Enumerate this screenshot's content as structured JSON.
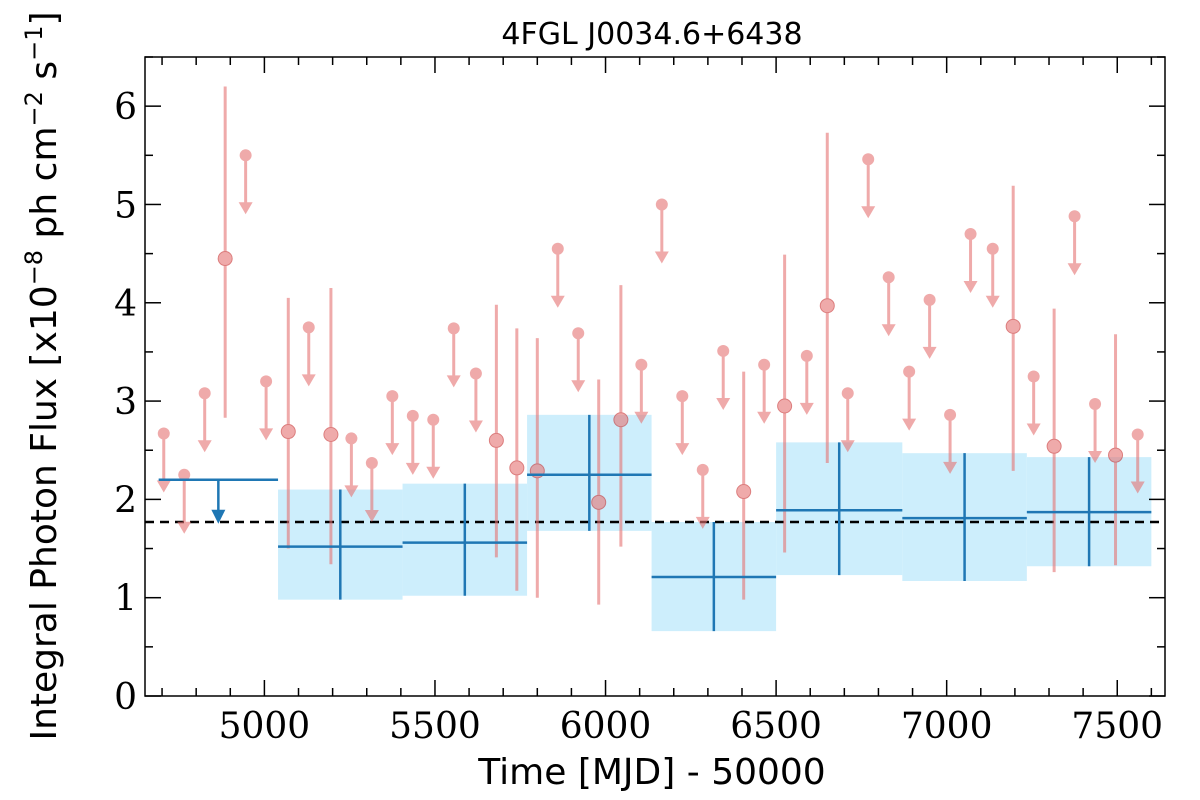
{
  "chart_data": {
    "type": "scatter",
    "title": "4FGL J0034.6+6438",
    "xlabel": "Time [MJD] - 50000",
    "ylabel_main": "Integral Photon Flux [x10",
    "ylabel_exp1": "−8",
    "ylabel_mid": " ph cm",
    "ylabel_exp2": "−2",
    "ylabel_mid2": " s",
    "ylabel_exp3": "−1",
    "ylabel_end": "]",
    "xlim": [
      4650,
      7640
    ],
    "ylim": [
      0,
      6.5
    ],
    "xticks": [
      5000,
      5500,
      6000,
      6500,
      7000,
      7500
    ],
    "yticks": [
      0,
      1,
      2,
      3,
      4,
      5,
      6
    ],
    "average_flux": 1.77,
    "colors": {
      "monthly": "#e57373",
      "yearly": "#1f77b4",
      "band": "#cdeefc",
      "average": "#000000"
    },
    "yearly_bins": [
      {
        "x_start": 4690,
        "x_end": 5040,
        "upper_limit": 2.2
      },
      {
        "x_start": 5040,
        "x_end": 5405,
        "y": 1.52,
        "y_low": 0.98,
        "y_high": 2.1
      },
      {
        "x_start": 5405,
        "x_end": 5770,
        "y": 1.56,
        "y_low": 1.02,
        "y_high": 2.16
      },
      {
        "x_start": 5770,
        "x_end": 6135,
        "y": 2.25,
        "y_low": 1.68,
        "y_high": 2.86
      },
      {
        "x_start": 6135,
        "x_end": 6500,
        "y": 1.21,
        "y_low": 0.66,
        "y_high": 1.77
      },
      {
        "x_start": 6500,
        "x_end": 6870,
        "y": 1.89,
        "y_low": 1.23,
        "y_high": 2.58
      },
      {
        "x_start": 6870,
        "x_end": 7235,
        "y": 1.81,
        "y_low": 1.17,
        "y_high": 2.47
      },
      {
        "x_start": 7235,
        "x_end": 7600,
        "y": 1.87,
        "y_low": 1.32,
        "y_high": 2.43
      }
    ],
    "monthly_points": [
      {
        "x": 4705,
        "y": 2.67,
        "ul": true
      },
      {
        "x": 4765,
        "y": 2.25,
        "ul": true
      },
      {
        "x": 4825,
        "y": 3.08,
        "ul": true
      },
      {
        "x": 4885,
        "y": 4.45,
        "y_low": 2.83,
        "y_high": 6.2
      },
      {
        "x": 4945,
        "y": 5.5,
        "ul": true
      },
      {
        "x": 5005,
        "y": 3.2,
        "ul": true
      },
      {
        "x": 5070,
        "y": 2.69,
        "y_low": 1.5,
        "y_high": 4.05
      },
      {
        "x": 5130,
        "y": 3.75,
        "ul": true
      },
      {
        "x": 5195,
        "y": 2.66,
        "y_low": 1.34,
        "y_high": 4.15
      },
      {
        "x": 5255,
        "y": 2.62,
        "ul": true
      },
      {
        "x": 5315,
        "y": 2.37,
        "ul": true
      },
      {
        "x": 5375,
        "y": 3.05,
        "ul": true
      },
      {
        "x": 5435,
        "y": 2.85,
        "ul": true
      },
      {
        "x": 5495,
        "y": 2.81,
        "ul": true
      },
      {
        "x": 5555,
        "y": 3.74,
        "ul": true
      },
      {
        "x": 5620,
        "y": 3.28,
        "ul": true
      },
      {
        "x": 5680,
        "y": 2.6,
        "y_low": 1.41,
        "y_high": 3.98
      },
      {
        "x": 5740,
        "y": 2.32,
        "y_low": 1.07,
        "y_high": 3.74
      },
      {
        "x": 5800,
        "y": 2.29,
        "y_low": 1.0,
        "y_high": 3.64
      },
      {
        "x": 5860,
        "y": 4.55,
        "ul": true
      },
      {
        "x": 5920,
        "y": 3.69,
        "ul": true
      },
      {
        "x": 5980,
        "y": 1.97,
        "y_low": 0.93,
        "y_high": 3.22
      },
      {
        "x": 6045,
        "y": 2.81,
        "y_low": 1.52,
        "y_high": 4.18
      },
      {
        "x": 6105,
        "y": 3.37,
        "ul": true
      },
      {
        "x": 6165,
        "y": 5.0,
        "ul": true
      },
      {
        "x": 6225,
        "y": 3.05,
        "ul": true
      },
      {
        "x": 6285,
        "y": 2.3,
        "ul": true
      },
      {
        "x": 6345,
        "y": 3.51,
        "ul": true
      },
      {
        "x": 6405,
        "y": 2.08,
        "y_low": 0.98,
        "y_high": 3.3
      },
      {
        "x": 6465,
        "y": 3.37,
        "ul": true
      },
      {
        "x": 6525,
        "y": 2.95,
        "y_low": 1.46,
        "y_high": 4.49
      },
      {
        "x": 6590,
        "y": 3.46,
        "ul": true
      },
      {
        "x": 6650,
        "y": 3.97,
        "y_low": 2.37,
        "y_high": 5.73
      },
      {
        "x": 6710,
        "y": 3.08,
        "ul": true
      },
      {
        "x": 6770,
        "y": 5.46,
        "ul": true
      },
      {
        "x": 6830,
        "y": 4.26,
        "ul": true
      },
      {
        "x": 6890,
        "y": 3.3,
        "ul": true
      },
      {
        "x": 6950,
        "y": 4.03,
        "ul": true
      },
      {
        "x": 7010,
        "y": 2.86,
        "ul": true
      },
      {
        "x": 7070,
        "y": 4.7,
        "ul": true
      },
      {
        "x": 7135,
        "y": 4.55,
        "ul": true
      },
      {
        "x": 7195,
        "y": 3.76,
        "y_low": 2.29,
        "y_high": 5.19
      },
      {
        "x": 7255,
        "y": 3.25,
        "ul": true
      },
      {
        "x": 7315,
        "y": 2.54,
        "y_low": 1.26,
        "y_high": 3.94
      },
      {
        "x": 7375,
        "y": 4.88,
        "ul": true
      },
      {
        "x": 7435,
        "y": 2.97,
        "ul": true
      },
      {
        "x": 7495,
        "y": 2.45,
        "y_low": 1.33,
        "y_high": 3.68
      },
      {
        "x": 7560,
        "y": 2.66,
        "ul": true
      }
    ]
  }
}
